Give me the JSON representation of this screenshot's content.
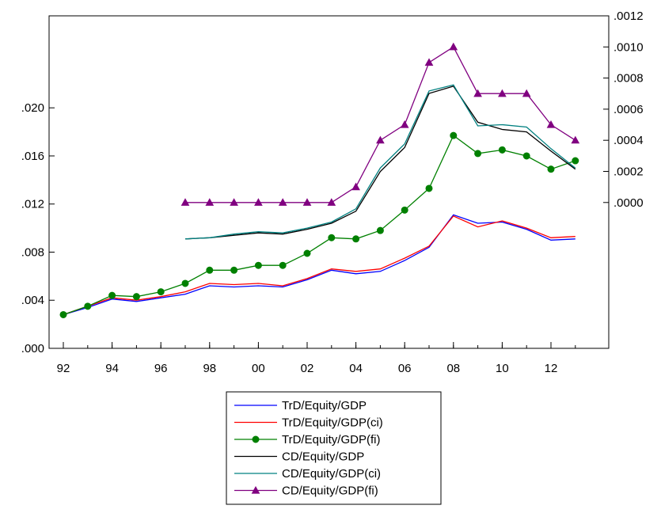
{
  "chart_data": {
    "type": "line",
    "title": "",
    "x": [
      1992,
      1993,
      1994,
      1995,
      1996,
      1997,
      1998,
      1999,
      2000,
      2001,
      2002,
      2003,
      2004,
      2005,
      2006,
      2007,
      2008,
      2009,
      2010,
      2011,
      2012,
      2013
    ],
    "x_tick_labels": [
      "92",
      "94",
      "96",
      "98",
      "00",
      "02",
      "04",
      "06",
      "08",
      "10",
      "12"
    ],
    "x_tick_years": [
      1992,
      1994,
      1996,
      1998,
      2000,
      2002,
      2004,
      2006,
      2008,
      2010,
      2012
    ],
    "left_axis": {
      "ylim": [
        0,
        0.02765
      ],
      "ticks": [
        0.0,
        0.004,
        0.008,
        0.012,
        0.016,
        0.02
      ],
      "tick_labels": [
        ".000",
        ".004",
        ".008",
        ".012",
        ".016",
        ".020"
      ]
    },
    "right_axis": {
      "ylim": [
        -0.0009375,
        0.0012
      ],
      "ticks": [
        0.0,
        0.0002,
        0.0004,
        0.0006,
        0.0008,
        0.001,
        0.0012
      ],
      "tick_labels": [
        ".0000",
        ".0002",
        ".0004",
        ".0006",
        ".0008",
        ".0010",
        ".0012"
      ]
    },
    "legend_position": "bottom-center",
    "grid": false,
    "series": [
      {
        "name": "TrD/Equity/GDP",
        "color": "#0000ff",
        "marker": "none",
        "axis": "left",
        "values": [
          0.0028,
          0.0034,
          0.0041,
          0.0039,
          0.0042,
          0.0045,
          0.0052,
          0.0051,
          0.0052,
          0.0051,
          0.0057,
          0.0065,
          0.0062,
          0.0064,
          0.0073,
          0.0084,
          0.0111,
          0.0104,
          0.0105,
          0.0099,
          0.009,
          0.0091
        ]
      },
      {
        "name": "TrD/Equity/GDP(ci)",
        "color": "#ff0000",
        "marker": "none",
        "axis": "left",
        "values": [
          0.0028,
          0.0035,
          0.0042,
          0.004,
          0.0043,
          0.0047,
          0.0054,
          0.0053,
          0.0054,
          0.0052,
          0.0058,
          0.0066,
          0.0064,
          0.0066,
          0.0075,
          0.0085,
          0.011,
          0.0101,
          0.0106,
          0.01,
          0.0092,
          0.0093
        ]
      },
      {
        "name": "TrD/Equity/GDP(fi)",
        "color": "#008000",
        "marker": "circle",
        "axis": "left",
        "values": [
          0.0028,
          0.0035,
          0.0044,
          0.0043,
          0.0047,
          0.0054,
          0.0065,
          0.0065,
          0.0069,
          0.0069,
          0.0079,
          0.0092,
          0.0091,
          0.0098,
          0.0115,
          0.0133,
          0.0177,
          0.0162,
          0.0165,
          0.016,
          0.0149,
          0.0156
        ]
      },
      {
        "name": "CD/Equity/GDP",
        "color": "#000000",
        "marker": "none",
        "axis": "left",
        "values": [
          null,
          null,
          null,
          null,
          null,
          0.0091,
          0.0092,
          0.0094,
          0.0096,
          0.0095,
          0.0099,
          0.0104,
          0.0114,
          0.0147,
          0.0167,
          0.0212,
          0.0218,
          0.0188,
          0.0182,
          0.018,
          0.0164,
          0.0149
        ]
      },
      {
        "name": "CD/Equity/GDP(ci)",
        "color": "#008080",
        "marker": "none",
        "axis": "left",
        "values": [
          null,
          null,
          null,
          null,
          null,
          0.0091,
          0.0092,
          0.0095,
          0.0097,
          0.0096,
          0.01,
          0.0105,
          0.0116,
          0.015,
          0.017,
          0.0214,
          0.0219,
          0.0185,
          0.0186,
          0.0184,
          0.0166,
          0.015
        ]
      },
      {
        "name": "CD/Equity/GDP(fi)",
        "color": "#800080",
        "marker": "triangle",
        "axis": "right",
        "values": [
          null,
          null,
          null,
          null,
          null,
          0.0,
          0.0,
          0.0,
          0.0,
          0.0,
          0.0,
          0.0,
          0.0001,
          0.0004,
          0.0005,
          0.0009,
          0.001,
          0.0007,
          0.0007,
          0.0007,
          0.0005,
          0.0004
        ]
      }
    ]
  }
}
